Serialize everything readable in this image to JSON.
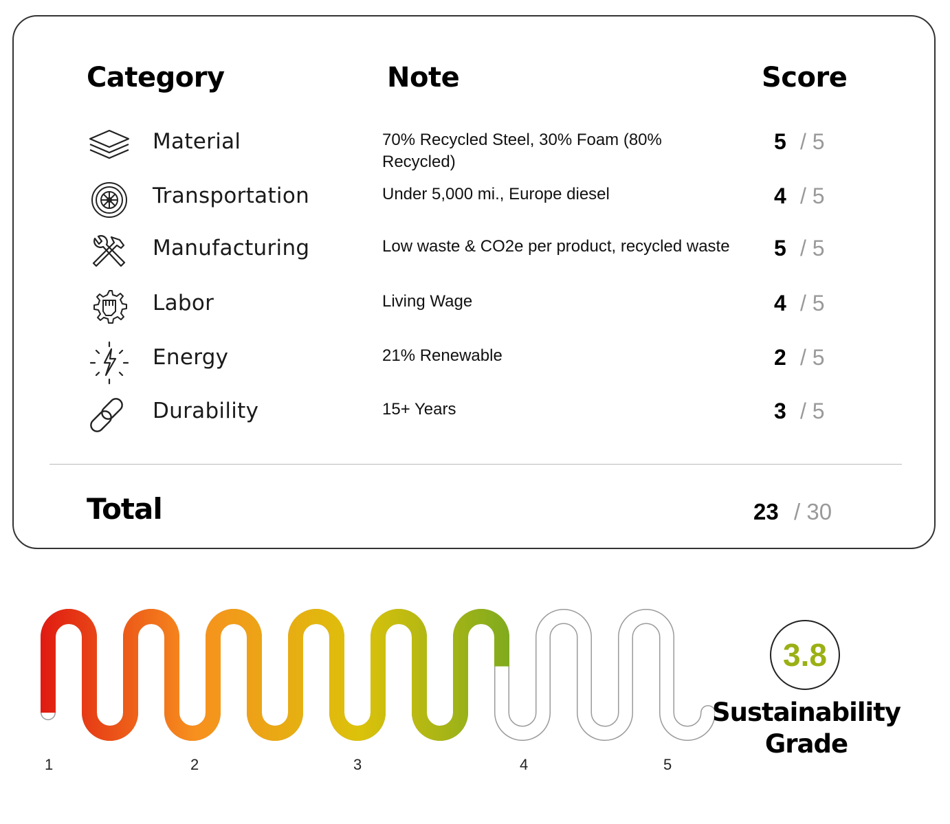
{
  "table": {
    "header_category": "Category",
    "header_note": "Note",
    "header_score": "Score",
    "rows": [
      {
        "icon": "layers-icon",
        "category": "Material",
        "note": "70% Recycled Steel, 30% Foam (80% Recycled)",
        "score": "5",
        "max": "/ 5"
      },
      {
        "icon": "tire-icon",
        "category": "Transportation",
        "note": "Under 5,000 mi., Europe diesel",
        "score": "4",
        "max": "/ 5"
      },
      {
        "icon": "wrench-hammer-icon",
        "category": "Manufacturing",
        "note": "Low waste & CO2e per product, recycled waste",
        "score": "5",
        "max": "/ 5"
      },
      {
        "icon": "fist-gear-icon",
        "category": "Labor",
        "note": "Living Wage",
        "score": "4",
        "max": "/ 5"
      },
      {
        "icon": "lightning-icon",
        "category": "Energy",
        "note": "21% Renewable",
        "score": "2",
        "max": "/ 5"
      },
      {
        "icon": "chain-link-icon",
        "category": "Durability",
        "note": "15+ Years",
        "score": "3",
        "max": "/ 5"
      }
    ],
    "total_label": "Total",
    "total_score": "23",
    "total_max": "/ 30"
  },
  "meter": {
    "scale_labels": [
      "1",
      "2",
      "3",
      "4",
      "5"
    ],
    "grade_value": "3.8",
    "grade_fraction": 0.7,
    "grade_label_line1": "Sustainability",
    "grade_label_line2": "Grade",
    "colors": {
      "start": "#e01b12",
      "orange": "#f7901e",
      "yellow": "#dcc20a",
      "green": "#80ab1e",
      "empty_outline": "#9a9a9a",
      "grade_text": "#9bb014"
    }
  }
}
